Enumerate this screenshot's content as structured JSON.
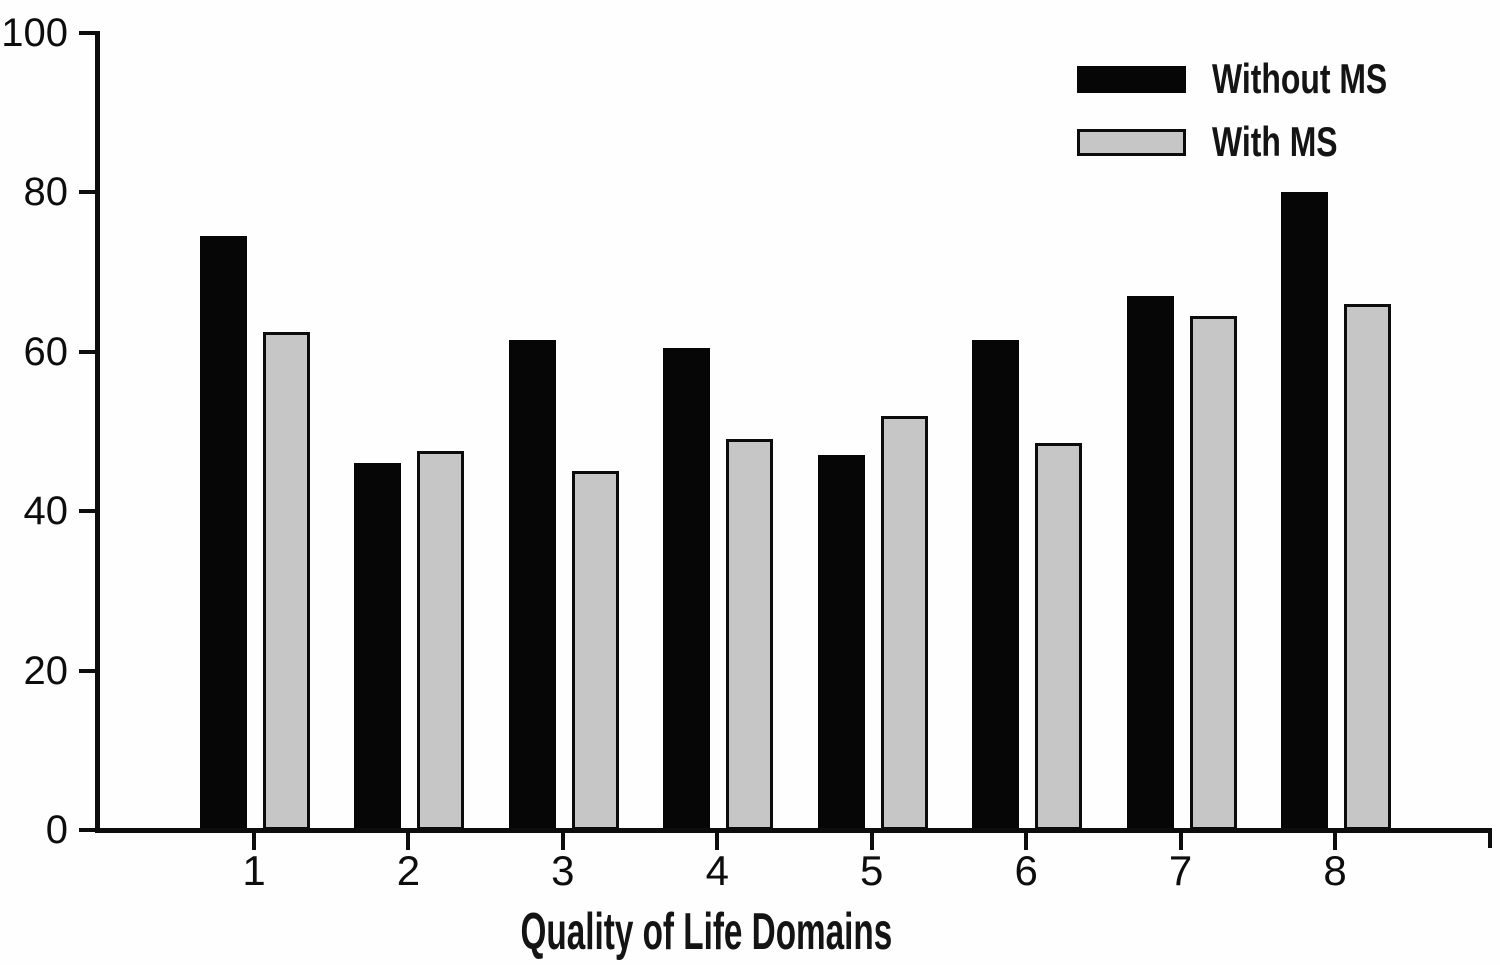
{
  "chart_data": {
    "type": "bar",
    "title": "",
    "xlabel": "Quality of Life Domains",
    "ylabel": "",
    "categories": [
      "1",
      "2",
      "3",
      "4",
      "5",
      "6",
      "7",
      "8"
    ],
    "series": [
      {
        "name": "Without MS",
        "color": "#060606",
        "values": [
          74.5,
          46,
          61.5,
          60.5,
          47,
          61.5,
          67,
          80
        ]
      },
      {
        "name": "With MS",
        "color": "#c6c6c6",
        "border_color": "#0c0c0c",
        "values": [
          62.5,
          47.5,
          45,
          49,
          52,
          48.5,
          64.5,
          66
        ]
      }
    ],
    "ylim": [
      0,
      100
    ],
    "yticks": [
      0,
      20,
      40,
      60,
      80,
      100
    ],
    "grid": false,
    "legend_position": "top-right",
    "axis_color": "#0d0d0d",
    "background_color": "#fefefe"
  }
}
